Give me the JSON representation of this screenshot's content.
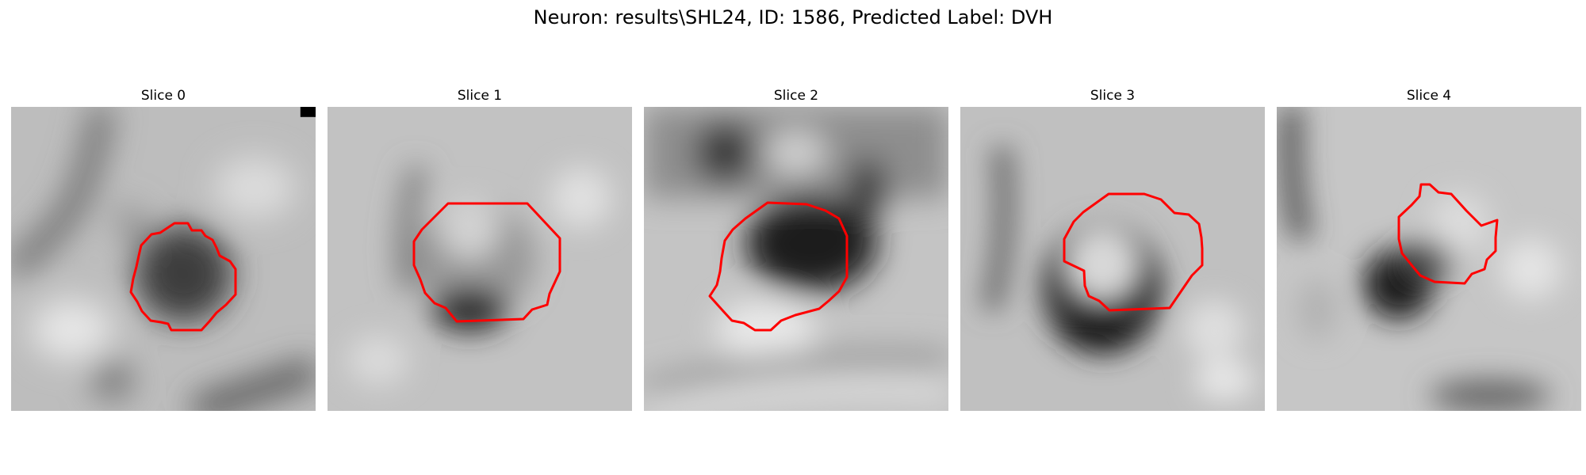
{
  "figure": {
    "title": "Neuron: results\\SHL24, ID: 1586, Predicted Label: DVH"
  },
  "panels": [
    {
      "title": "Slice 0"
    },
    {
      "title": "Slice 1"
    },
    {
      "title": "Slice 2"
    },
    {
      "title": "Slice 3"
    },
    {
      "title": "Slice 4"
    }
  ],
  "colors": {
    "contour": "#ff0000",
    "background": "#ffffff",
    "image_colormap": "grayscale"
  },
  "icons": [
    "microscopy-slice-image",
    "cell-contour-outline"
  ]
}
